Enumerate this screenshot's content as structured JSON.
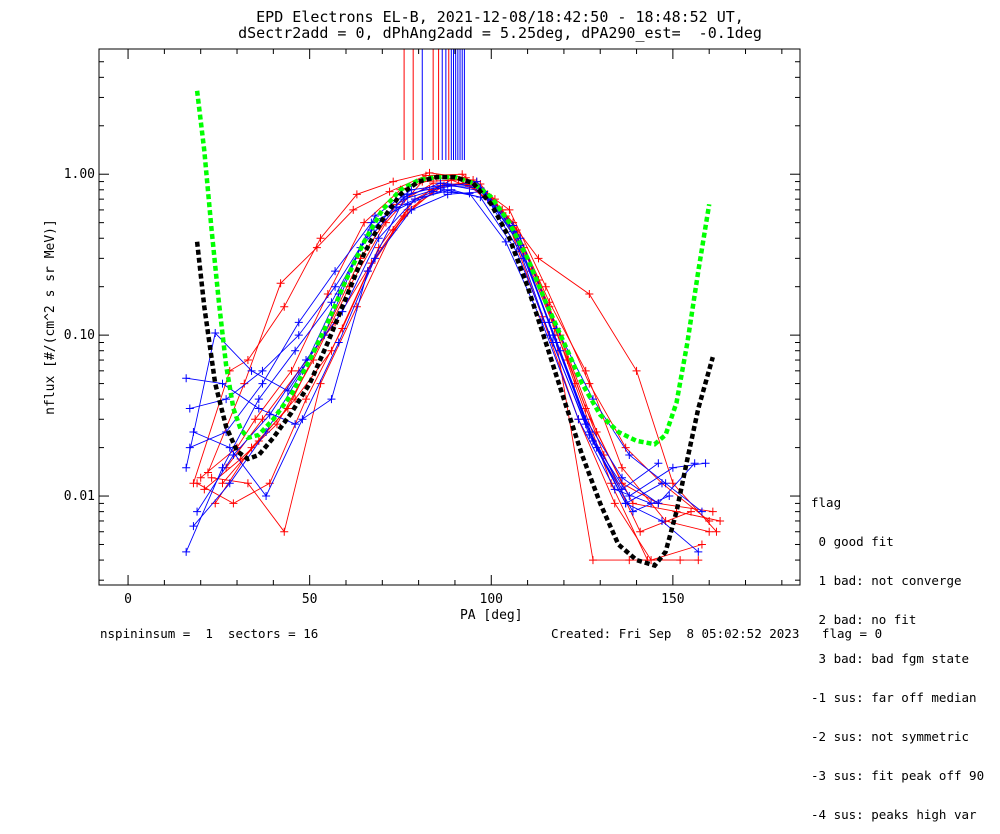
{
  "chart_data": {
    "type": "line",
    "title": "EPD Electrons EL-B, 2021-12-08/18:42:50 - 18:48:52 UT,",
    "subtitle": "dSectr2add = 0, dPhAng2add = 5.25deg, dPA290_est=  -0.1deg",
    "xlabel": "PA [deg]",
    "ylabel": "nflux [#/(cm^2 s sr MeV)]",
    "xlim": [
      -8,
      185
    ],
    "ylim": [
      0.0028,
      6
    ],
    "yscale": "log",
    "x_ticks": [
      0,
      50,
      100,
      150
    ],
    "y_ticks": [
      {
        "v": 0.01,
        "label": "0.01"
      },
      {
        "v": 0.1,
        "label": "0.10"
      },
      {
        "v": 1.0,
        "label": "1.00"
      }
    ],
    "colors": {
      "red": "#ff0000",
      "blue": "#0000ff",
      "green": "#00ff00",
      "black": "#000000"
    },
    "red_series": [
      {
        "x": [
          18,
          28,
          33,
          43,
          53,
          63,
          73,
          83,
          93,
          105,
          115,
          127,
          137,
          147,
          160
        ],
        "y": [
          0.012,
          0.06,
          0.07,
          0.15,
          0.4,
          0.75,
          0.9,
          1.02,
          0.95,
          0.6,
          0.2,
          0.05,
          0.02,
          0.012,
          0.007
        ]
      },
      {
        "x": [
          20,
          30,
          35,
          45,
          55,
          65,
          75,
          85,
          95,
          106,
          116,
          126,
          136,
          146,
          161
        ],
        "y": [
          0.013,
          0.02,
          0.03,
          0.06,
          0.18,
          0.5,
          0.8,
          0.95,
          0.92,
          0.5,
          0.15,
          0.035,
          0.012,
          0.009,
          0.008
        ]
      },
      {
        "x": [
          22,
          32,
          42,
          52,
          62,
          72,
          82,
          92,
          103,
          113,
          127,
          140,
          150,
          162
        ],
        "y": [
          0.014,
          0.05,
          0.21,
          0.35,
          0.6,
          0.78,
          0.98,
          1.0,
          0.6,
          0.3,
          0.18,
          0.06,
          0.012,
          0.006
        ]
      },
      {
        "x": [
          24,
          34,
          44,
          54,
          64,
          74,
          84,
          94,
          104,
          114,
          124,
          134,
          144,
          158
        ],
        "y": [
          0.009,
          0.02,
          0.035,
          0.1,
          0.3,
          0.65,
          0.88,
          0.85,
          0.55,
          0.13,
          0.03,
          0.009,
          0.004,
          0.005
        ]
      },
      {
        "x": [
          26,
          36,
          46,
          56,
          66,
          76,
          86,
          96,
          106,
          116,
          126,
          136,
          148,
          160
        ],
        "y": [
          0.012,
          0.022,
          0.04,
          0.08,
          0.25,
          0.55,
          0.85,
          0.9,
          0.5,
          0.16,
          0.06,
          0.015,
          0.007,
          0.006
        ]
      },
      {
        "x": [
          21,
          31,
          41,
          51,
          61,
          71,
          81,
          91,
          101,
          111,
          121,
          131,
          141,
          155
        ],
        "y": [
          0.011,
          0.017,
          0.028,
          0.07,
          0.2,
          0.5,
          0.9,
          0.92,
          0.7,
          0.25,
          0.07,
          0.018,
          0.006,
          0.008
        ]
      },
      {
        "x": [
          23,
          33,
          43,
          53,
          63,
          73,
          83,
          93,
          103,
          113,
          123,
          133,
          143,
          157
        ],
        "y": [
          0.013,
          0.012,
          0.006,
          0.05,
          0.15,
          0.45,
          0.8,
          0.88,
          0.6,
          0.22,
          0.05,
          0.012,
          0.004,
          0.004
        ]
      },
      {
        "x": [
          19,
          29,
          39,
          49,
          59,
          69,
          79,
          89,
          99,
          109,
          119,
          129,
          139,
          151,
          163
        ],
        "y": [
          0.012,
          0.009,
          0.012,
          0.04,
          0.11,
          0.35,
          0.7,
          0.92,
          0.75,
          0.35,
          0.1,
          0.025,
          0.009,
          0.008,
          0.007
        ]
      },
      {
        "x": [
          27,
          37,
          47,
          57,
          67,
          77,
          87,
          97,
          107,
          117,
          128,
          138,
          152
        ],
        "y": [
          0.015,
          0.03,
          0.06,
          0.12,
          0.28,
          0.6,
          0.85,
          0.87,
          0.45,
          0.12,
          0.004,
          0.004,
          0.004
        ]
      }
    ],
    "blue_series": [
      {
        "x": [
          16,
          26,
          36,
          46,
          56,
          66,
          76,
          86,
          96,
          106,
          116,
          126,
          136,
          146,
          156
        ],
        "y": [
          0.054,
          0.05,
          0.035,
          0.028,
          0.04,
          0.25,
          0.7,
          0.82,
          0.9,
          0.48,
          0.12,
          0.03,
          0.013,
          0.009,
          0.016
        ]
      },
      {
        "x": [
          17,
          27,
          37,
          47,
          57,
          67,
          77,
          87,
          97,
          107,
          117,
          127,
          137,
          147,
          157
        ],
        "y": [
          0.035,
          0.04,
          0.06,
          0.1,
          0.2,
          0.45,
          0.75,
          0.85,
          0.82,
          0.42,
          0.1,
          0.025,
          0.009,
          0.007,
          0.0045
        ]
      },
      {
        "x": [
          18,
          28,
          38,
          48,
          58,
          68,
          78,
          88,
          98,
          108,
          118,
          128,
          138,
          148,
          158
        ],
        "y": [
          0.025,
          0.02,
          0.01,
          0.03,
          0.09,
          0.3,
          0.6,
          0.75,
          0.78,
          0.4,
          0.11,
          0.04,
          0.018,
          0.012,
          0.008
        ]
      },
      {
        "x": [
          16,
          26,
          36,
          46,
          56,
          66,
          76,
          86,
          96,
          106,
          116,
          126,
          136,
          146
        ],
        "y": [
          0.0045,
          0.015,
          0.04,
          0.08,
          0.16,
          0.42,
          0.72,
          0.88,
          0.84,
          0.44,
          0.1,
          0.028,
          0.011,
          0.016
        ]
      },
      {
        "x": [
          18,
          28,
          38,
          48,
          58,
          68,
          78,
          88,
          98,
          108,
          118,
          128,
          138,
          150,
          159
        ],
        "y": [
          0.0065,
          0.012,
          0.025,
          0.06,
          0.18,
          0.55,
          0.8,
          0.86,
          0.78,
          0.36,
          0.09,
          0.022,
          0.01,
          0.015,
          0.016
        ]
      },
      {
        "x": [
          19,
          29,
          39,
          49,
          59,
          69,
          79,
          89,
          99,
          109,
          119,
          129,
          139,
          149
        ],
        "y": [
          0.008,
          0.018,
          0.032,
          0.07,
          0.14,
          0.4,
          0.7,
          0.8,
          0.7,
          0.3,
          0.08,
          0.02,
          0.008,
          0.01
        ]
      },
      {
        "x": [
          17,
          27,
          37,
          47,
          57,
          67,
          77,
          87,
          97,
          107,
          117,
          127,
          137,
          147
        ],
        "y": [
          0.02,
          0.025,
          0.05,
          0.12,
          0.25,
          0.5,
          0.65,
          0.8,
          0.72,
          0.33,
          0.09,
          0.024,
          0.009,
          0.012
        ]
      },
      {
        "x": [
          16,
          24,
          34,
          44,
          54,
          64,
          74,
          84,
          94,
          104,
          114,
          124,
          134,
          144
        ],
        "y": [
          0.015,
          0.103,
          0.06,
          0.045,
          0.1,
          0.35,
          0.62,
          0.78,
          0.76,
          0.38,
          0.12,
          0.03,
          0.011,
          0.009
        ]
      }
    ],
    "green_curve": {
      "x": [
        19,
        21,
        23,
        25,
        27,
        29,
        31,
        33,
        36,
        40,
        45,
        50,
        55,
        60,
        65,
        70,
        75,
        80,
        85,
        90,
        95,
        100,
        105,
        110,
        115,
        120,
        125,
        130,
        135,
        140,
        145,
        148,
        151,
        154,
        157,
        160
      ],
      "y": [
        3.3,
        1.4,
        0.45,
        0.16,
        0.065,
        0.035,
        0.026,
        0.023,
        0.024,
        0.03,
        0.043,
        0.07,
        0.12,
        0.22,
        0.38,
        0.6,
        0.8,
        0.92,
        0.96,
        0.96,
        0.88,
        0.72,
        0.5,
        0.3,
        0.16,
        0.09,
        0.05,
        0.032,
        0.025,
        0.022,
        0.021,
        0.024,
        0.038,
        0.09,
        0.25,
        0.65
      ]
    },
    "black_curve": {
      "x": [
        19,
        21,
        24,
        27,
        30,
        33,
        36,
        40,
        45,
        50,
        55,
        60,
        65,
        70,
        75,
        80,
        85,
        90,
        95,
        100,
        105,
        110,
        115,
        120,
        125,
        130,
        135,
        140,
        145,
        148,
        151,
        154,
        157,
        161
      ],
      "y": [
        0.38,
        0.15,
        0.05,
        0.027,
        0.019,
        0.017,
        0.018,
        0.023,
        0.033,
        0.05,
        0.09,
        0.17,
        0.32,
        0.52,
        0.75,
        0.9,
        0.96,
        0.96,
        0.88,
        0.65,
        0.4,
        0.2,
        0.09,
        0.04,
        0.018,
        0.009,
        0.005,
        0.004,
        0.0037,
        0.0045,
        0.008,
        0.017,
        0.035,
        0.073
      ]
    },
    "pa_markers": [
      {
        "x": 76,
        "color": "red"
      },
      {
        "x": 78.5,
        "color": "red"
      },
      {
        "x": 81,
        "color": "blue"
      },
      {
        "x": 84,
        "color": "red"
      },
      {
        "x": 85.5,
        "color": "red"
      },
      {
        "x": 86.5,
        "color": "blue"
      },
      {
        "x": 87.5,
        "color": "blue"
      },
      {
        "x": 88.3,
        "color": "red"
      },
      {
        "x": 89,
        "color": "blue"
      },
      {
        "x": 89.6,
        "color": "blue"
      },
      {
        "x": 90.2,
        "color": "blue"
      },
      {
        "x": 90.8,
        "color": "blue"
      },
      {
        "x": 91.4,
        "color": "blue"
      },
      {
        "x": 92,
        "color": "blue"
      },
      {
        "x": 92.6,
        "color": "blue"
      }
    ]
  },
  "legend": {
    "title": "flag",
    "items": [
      " 0 good fit",
      " 1 bad: not converge",
      " 2 bad: no fit",
      " 3 bad: bad fgm state",
      "-1 sus: far off median",
      "-2 sus: not symmetric",
      "-3 sus: fit peak off 90",
      "-4 sus: peaks high var"
    ]
  },
  "footer": {
    "left": "nspininsum =  1  sectors = 16",
    "right": "Created: Fri Sep  8 05:02:52 2023   flag = 0"
  }
}
